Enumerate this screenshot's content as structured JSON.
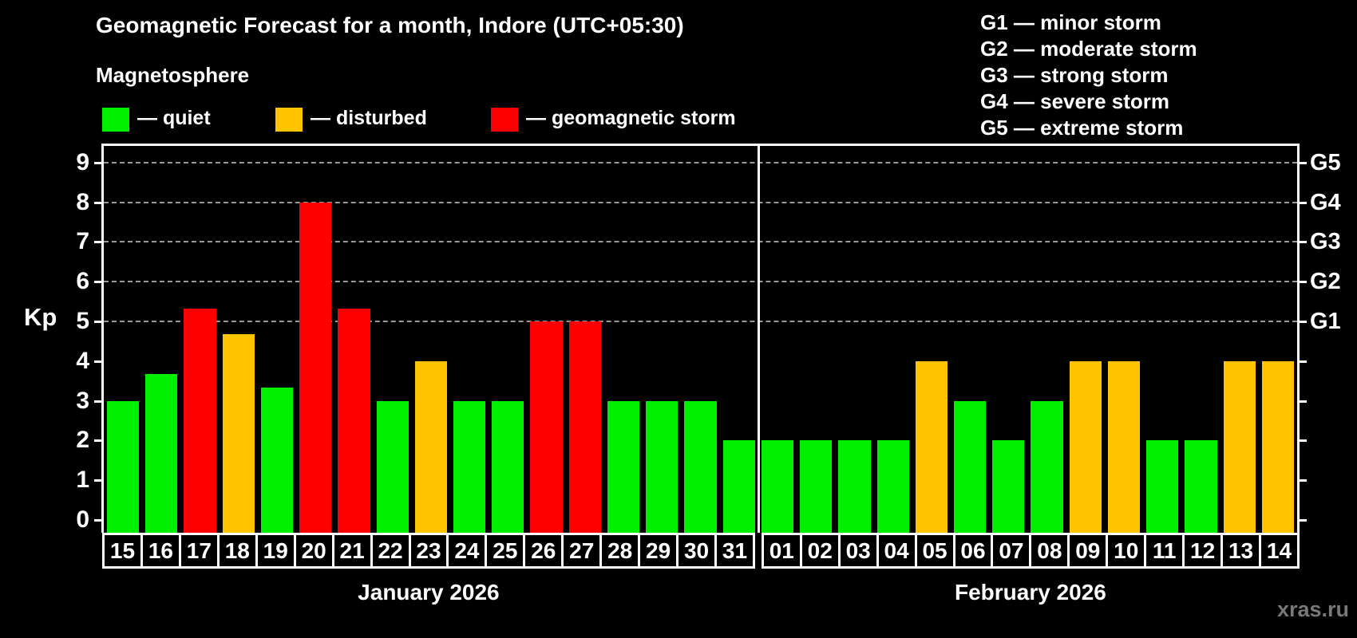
{
  "header": {
    "title": "Geomagnetic Forecast for a month, Indore (UTC+05:30)",
    "subtitle": "Magnetosphere"
  },
  "legend": {
    "items": [
      {
        "label": "— quiet",
        "status": "quiet",
        "color": "#00f000"
      },
      {
        "label": "— disturbed",
        "status": "disturbed",
        "color": "#ffc400"
      },
      {
        "label": "— geomagnetic storm",
        "status": "storm",
        "color": "#ff0000"
      }
    ]
  },
  "g_legend": {
    "items": [
      {
        "text": "G1 — minor storm"
      },
      {
        "text": "G2 — moderate storm"
      },
      {
        "text": "G3 — strong storm"
      },
      {
        "text": "G4 — severe storm"
      },
      {
        "text": "G5 — extreme storm"
      }
    ]
  },
  "watermark": "xras.ru",
  "chart_data": {
    "type": "bar",
    "title": "Geomagnetic Forecast for a month, Indore (UTC+05:30)",
    "subtitle": "Magnetosphere",
    "ylabel": "Kp",
    "ylim": [
      0,
      9.4
    ],
    "yticks": [
      0,
      1,
      2,
      3,
      4,
      5,
      6,
      7,
      8,
      9
    ],
    "gridlines_at": [
      5,
      6,
      7,
      8,
      9
    ],
    "grid": "dashed horizontal lines at Kp 5-9",
    "legend_position": "top",
    "right_axis_labels": [
      {
        "kp": 5,
        "label": "G1"
      },
      {
        "kp": 6,
        "label": "G2"
      },
      {
        "kp": 7,
        "label": "G3"
      },
      {
        "kp": 8,
        "label": "G4"
      },
      {
        "kp": 9,
        "label": "G5"
      }
    ],
    "status_colors": {
      "quiet": "#00f000",
      "disturbed": "#ffc400",
      "storm": "#ff0000"
    },
    "months": [
      {
        "label": "January 2026",
        "days": [
          {
            "day": "15",
            "kp": 3.0,
            "status": "quiet"
          },
          {
            "day": "16",
            "kp": 3.67,
            "status": "quiet"
          },
          {
            "day": "17",
            "kp": 5.33,
            "status": "storm"
          },
          {
            "day": "18",
            "kp": 4.67,
            "status": "disturbed"
          },
          {
            "day": "19",
            "kp": 3.33,
            "status": "quiet"
          },
          {
            "day": "20",
            "kp": 8.0,
            "status": "storm"
          },
          {
            "day": "21",
            "kp": 5.33,
            "status": "storm"
          },
          {
            "day": "22",
            "kp": 3.0,
            "status": "quiet"
          },
          {
            "day": "23",
            "kp": 4.0,
            "status": "disturbed"
          },
          {
            "day": "24",
            "kp": 3.0,
            "status": "quiet"
          },
          {
            "day": "25",
            "kp": 3.0,
            "status": "quiet"
          },
          {
            "day": "26",
            "kp": 5.0,
            "status": "storm"
          },
          {
            "day": "27",
            "kp": 5.0,
            "status": "storm"
          },
          {
            "day": "28",
            "kp": 3.0,
            "status": "quiet"
          },
          {
            "day": "29",
            "kp": 3.0,
            "status": "quiet"
          },
          {
            "day": "30",
            "kp": 3.0,
            "status": "quiet"
          },
          {
            "day": "31",
            "kp": 2.0,
            "status": "quiet"
          }
        ]
      },
      {
        "label": "February 2026",
        "days": [
          {
            "day": "01",
            "kp": 2.0,
            "status": "quiet"
          },
          {
            "day": "02",
            "kp": 2.0,
            "status": "quiet"
          },
          {
            "day": "03",
            "kp": 2.0,
            "status": "quiet"
          },
          {
            "day": "04",
            "kp": 2.0,
            "status": "quiet"
          },
          {
            "day": "05",
            "kp": 4.0,
            "status": "disturbed"
          },
          {
            "day": "06",
            "kp": 3.0,
            "status": "quiet"
          },
          {
            "day": "07",
            "kp": 2.0,
            "status": "quiet"
          },
          {
            "day": "08",
            "kp": 3.0,
            "status": "quiet"
          },
          {
            "day": "09",
            "kp": 4.0,
            "status": "disturbed"
          },
          {
            "day": "10",
            "kp": 4.0,
            "status": "disturbed"
          },
          {
            "day": "11",
            "kp": 2.0,
            "status": "quiet"
          },
          {
            "day": "12",
            "kp": 2.0,
            "status": "quiet"
          },
          {
            "day": "13",
            "kp": 4.0,
            "status": "disturbed"
          },
          {
            "day": "14",
            "kp": 4.0,
            "status": "disturbed"
          }
        ]
      }
    ]
  }
}
